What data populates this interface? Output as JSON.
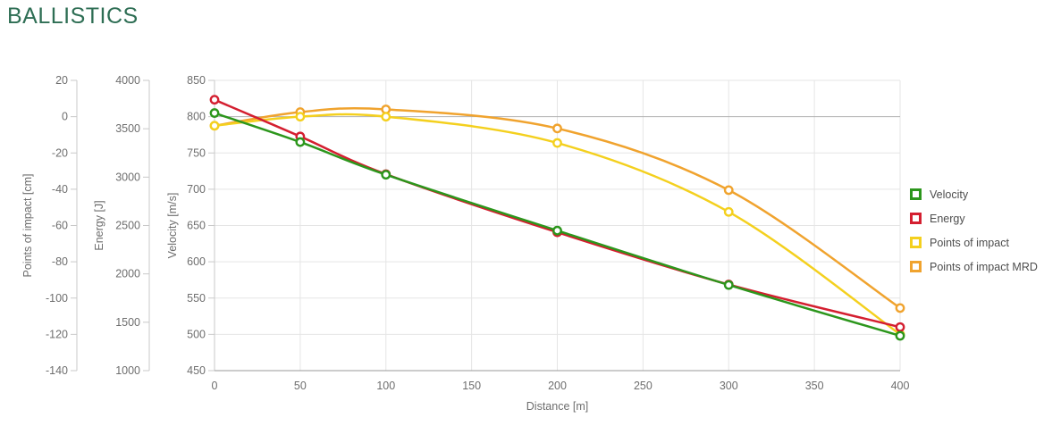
{
  "page": {
    "title": "BALLISTICS",
    "title_color": "#2e6e54",
    "background": "#ffffff"
  },
  "chart_data": {
    "type": "line",
    "title": "BALLISTICS",
    "xlabel": "Distance [m]",
    "x": [
      0,
      50,
      100,
      200,
      300,
      400
    ],
    "x_ticks": [
      0,
      50,
      100,
      150,
      200,
      250,
      300,
      350,
      400
    ],
    "xlim": [
      0,
      400
    ],
    "grid": true,
    "marker": "circle",
    "legend_position": "right",
    "axes": {
      "poi": {
        "label": "Points of impact [cm]",
        "min": -140,
        "max": 20,
        "ticks": [
          -140,
          -120,
          -100,
          -80,
          -60,
          -40,
          -20,
          0,
          20
        ]
      },
      "energy": {
        "label": "Energy [J]",
        "min": 1000,
        "max": 4000,
        "ticks": [
          1000,
          1500,
          2000,
          2500,
          3000,
          3500,
          4000
        ]
      },
      "velocity": {
        "label": "Velocity [m/s]",
        "min": 450,
        "max": 850,
        "ticks": [
          450,
          500,
          550,
          600,
          650,
          700,
          750,
          800,
          850
        ]
      }
    },
    "series": [
      {
        "name": "Velocity",
        "axis": "velocity",
        "color": "#2c961c",
        "values": [
          805,
          765,
          720,
          643,
          568,
          498
        ]
      },
      {
        "name": "Energy",
        "axis": "energy",
        "color": "#d41f30",
        "values": [
          3800,
          3420,
          3030,
          2430,
          1890,
          1450
        ]
      },
      {
        "name": "Points of impact",
        "axis": "poi",
        "color": "#f4d01e",
        "values": [
          -5,
          0,
          0,
          -14.5,
          -52.5,
          -120
        ]
      },
      {
        "name": "Points of impact MRD",
        "axis": "poi",
        "color": "#f0a32e",
        "values": [
          -5,
          2.5,
          4,
          -6.5,
          -40.5,
          -105.5
        ]
      }
    ]
  }
}
